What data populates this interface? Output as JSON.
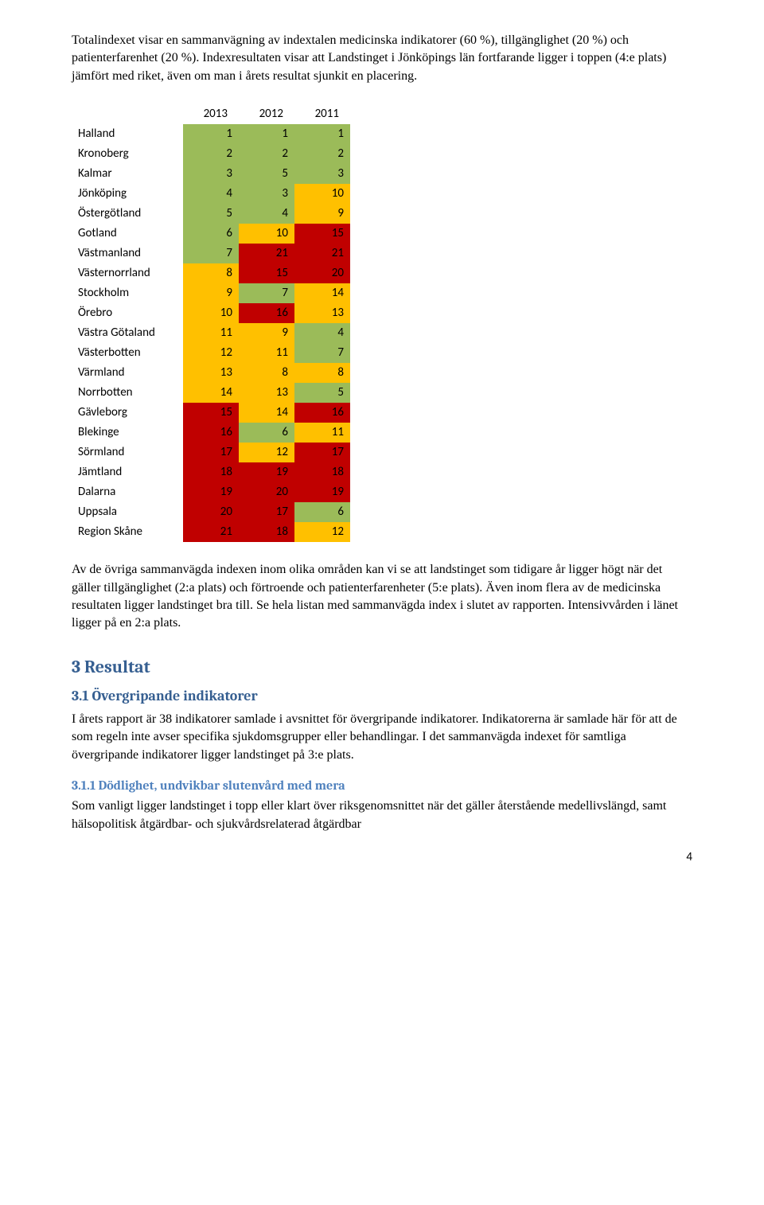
{
  "intro_para": "Totalindexet visar en sammanvägning av indextalen medicinska indikatorer (60 %), tillgänglighet (20 %) och patienterfarenhet (20 %). Indexresultaten visar att Landstinget i Jönköpings län fortfarande ligger i toppen (4:e plats) jämfört med riket, även om man i årets resultat sjunkit en placering.",
  "table": {
    "headers": [
      "",
      "2013",
      "2012",
      "2011"
    ],
    "rows": [
      {
        "region": "Halland",
        "cells": [
          {
            "v": 1,
            "c": "g"
          },
          {
            "v": 1,
            "c": "g"
          },
          {
            "v": 1,
            "c": "g"
          }
        ]
      },
      {
        "region": "Kronoberg",
        "cells": [
          {
            "v": 2,
            "c": "g"
          },
          {
            "v": 2,
            "c": "g"
          },
          {
            "v": 2,
            "c": "g"
          }
        ]
      },
      {
        "region": "Kalmar",
        "cells": [
          {
            "v": 3,
            "c": "g"
          },
          {
            "v": 5,
            "c": "g"
          },
          {
            "v": 3,
            "c": "g"
          }
        ]
      },
      {
        "region": "Jönköping",
        "cells": [
          {
            "v": 4,
            "c": "g"
          },
          {
            "v": 3,
            "c": "g"
          },
          {
            "v": 10,
            "c": "y"
          }
        ]
      },
      {
        "region": "Östergötland",
        "cells": [
          {
            "v": 5,
            "c": "g"
          },
          {
            "v": 4,
            "c": "g"
          },
          {
            "v": 9,
            "c": "y"
          }
        ]
      },
      {
        "region": "Gotland",
        "cells": [
          {
            "v": 6,
            "c": "g"
          },
          {
            "v": 10,
            "c": "y"
          },
          {
            "v": 15,
            "c": "r"
          }
        ]
      },
      {
        "region": "Västmanland",
        "cells": [
          {
            "v": 7,
            "c": "g"
          },
          {
            "v": 21,
            "c": "r"
          },
          {
            "v": 21,
            "c": "r"
          }
        ]
      },
      {
        "region": "Västernorrland",
        "cells": [
          {
            "v": 8,
            "c": "y"
          },
          {
            "v": 15,
            "c": "r"
          },
          {
            "v": 20,
            "c": "r"
          }
        ]
      },
      {
        "region": "Stockholm",
        "cells": [
          {
            "v": 9,
            "c": "y"
          },
          {
            "v": 7,
            "c": "g"
          },
          {
            "v": 14,
            "c": "y"
          }
        ]
      },
      {
        "region": "Örebro",
        "cells": [
          {
            "v": 10,
            "c": "y"
          },
          {
            "v": 16,
            "c": "r"
          },
          {
            "v": 13,
            "c": "y"
          }
        ]
      },
      {
        "region": "Västra Götaland",
        "cells": [
          {
            "v": 11,
            "c": "y"
          },
          {
            "v": 9,
            "c": "y"
          },
          {
            "v": 4,
            "c": "g"
          }
        ]
      },
      {
        "region": "Västerbotten",
        "cells": [
          {
            "v": 12,
            "c": "y"
          },
          {
            "v": 11,
            "c": "y"
          },
          {
            "v": 7,
            "c": "g"
          }
        ]
      },
      {
        "region": "Värmland",
        "cells": [
          {
            "v": 13,
            "c": "y"
          },
          {
            "v": 8,
            "c": "y"
          },
          {
            "v": 8,
            "c": "y"
          }
        ]
      },
      {
        "region": "Norrbotten",
        "cells": [
          {
            "v": 14,
            "c": "y"
          },
          {
            "v": 13,
            "c": "y"
          },
          {
            "v": 5,
            "c": "g"
          }
        ]
      },
      {
        "region": "Gävleborg",
        "cells": [
          {
            "v": 15,
            "c": "r"
          },
          {
            "v": 14,
            "c": "y"
          },
          {
            "v": 16,
            "c": "r"
          }
        ]
      },
      {
        "region": "Blekinge",
        "cells": [
          {
            "v": 16,
            "c": "r"
          },
          {
            "v": 6,
            "c": "g"
          },
          {
            "v": 11,
            "c": "y"
          }
        ]
      },
      {
        "region": "Sörmland",
        "cells": [
          {
            "v": 17,
            "c": "r"
          },
          {
            "v": 12,
            "c": "y"
          },
          {
            "v": 17,
            "c": "r"
          }
        ]
      },
      {
        "region": "Jämtland",
        "cells": [
          {
            "v": 18,
            "c": "r"
          },
          {
            "v": 19,
            "c": "r"
          },
          {
            "v": 18,
            "c": "r"
          }
        ]
      },
      {
        "region": "Dalarna",
        "cells": [
          {
            "v": 19,
            "c": "r"
          },
          {
            "v": 20,
            "c": "r"
          },
          {
            "v": 19,
            "c": "r"
          }
        ]
      },
      {
        "region": "Uppsala",
        "cells": [
          {
            "v": 20,
            "c": "r"
          },
          {
            "v": 17,
            "c": "r"
          },
          {
            "v": 6,
            "c": "g"
          }
        ]
      },
      {
        "region": "Region Skåne",
        "cells": [
          {
            "v": 21,
            "c": "r"
          },
          {
            "v": 18,
            "c": "r"
          },
          {
            "v": 12,
            "c": "y"
          }
        ]
      }
    ],
    "colors": {
      "g": "#9bbb59",
      "y": "#ffc000",
      "r": "#c00000"
    }
  },
  "mid_para": "Av de övriga sammanvägda indexen inom olika områden kan vi se att landstinget som tidigare år ligger högt när det gäller tillgänglighet (2:a plats) och förtroende och patienterfarenheter (5:e plats). Även inom flera av de medicinska resultaten ligger landstinget bra till. Se hela listan med sammanvägda index i slutet av rapporten. Intensivvården i länet ligger på en 2:a plats.",
  "section_title": "3 Resultat",
  "subsection_title": "3.1 Övergripande indikatorer",
  "subsection_para": "I årets rapport är 38 indikatorer samlade i avsnittet för övergripande indikatorer. Indikatorerna är samlade här för att de som regeln inte avser specifika sjukdomsgrupper eller behandlingar. I det sammanvägda indexet för samtliga övergripande indikatorer ligger landstinget på 3:e plats.",
  "subsub_title": "3.1.1 Dödlighet, undvikbar slutenvård med mera",
  "subsub_para": "Som vanligt ligger landstinget i topp eller klart över riksgenomsnittet när det gäller återstående medellivslängd, samt hälsopolitisk åtgärdbar- och sjukvårdsrelaterad åtgärdbar",
  "page_number": "4"
}
